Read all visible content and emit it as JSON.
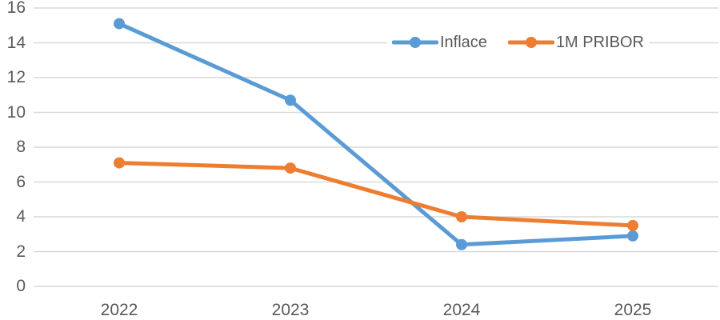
{
  "chart_data": {
    "type": "line",
    "categories": [
      "2022",
      "2023",
      "2024",
      "2025"
    ],
    "series": [
      {
        "name": "Inflace",
        "color": "#5B9BD5",
        "values": [
          15.1,
          10.7,
          2.4,
          2.9
        ]
      },
      {
        "name": "1M PRIBOR",
        "color": "#ED7D31",
        "values": [
          7.1,
          6.8,
          4.0,
          3.5
        ]
      }
    ],
    "title": "",
    "xlabel": "",
    "ylabel": "",
    "ylim": [
      0,
      16
    ],
    "y_ticks": [
      0,
      2,
      4,
      6,
      8,
      10,
      12,
      14,
      16
    ],
    "grid": true,
    "gridline_color": "#D9D9D9",
    "axis_text_color": "#595959",
    "background": "#FFFFFF",
    "legend_position": "inside-top-right"
  }
}
